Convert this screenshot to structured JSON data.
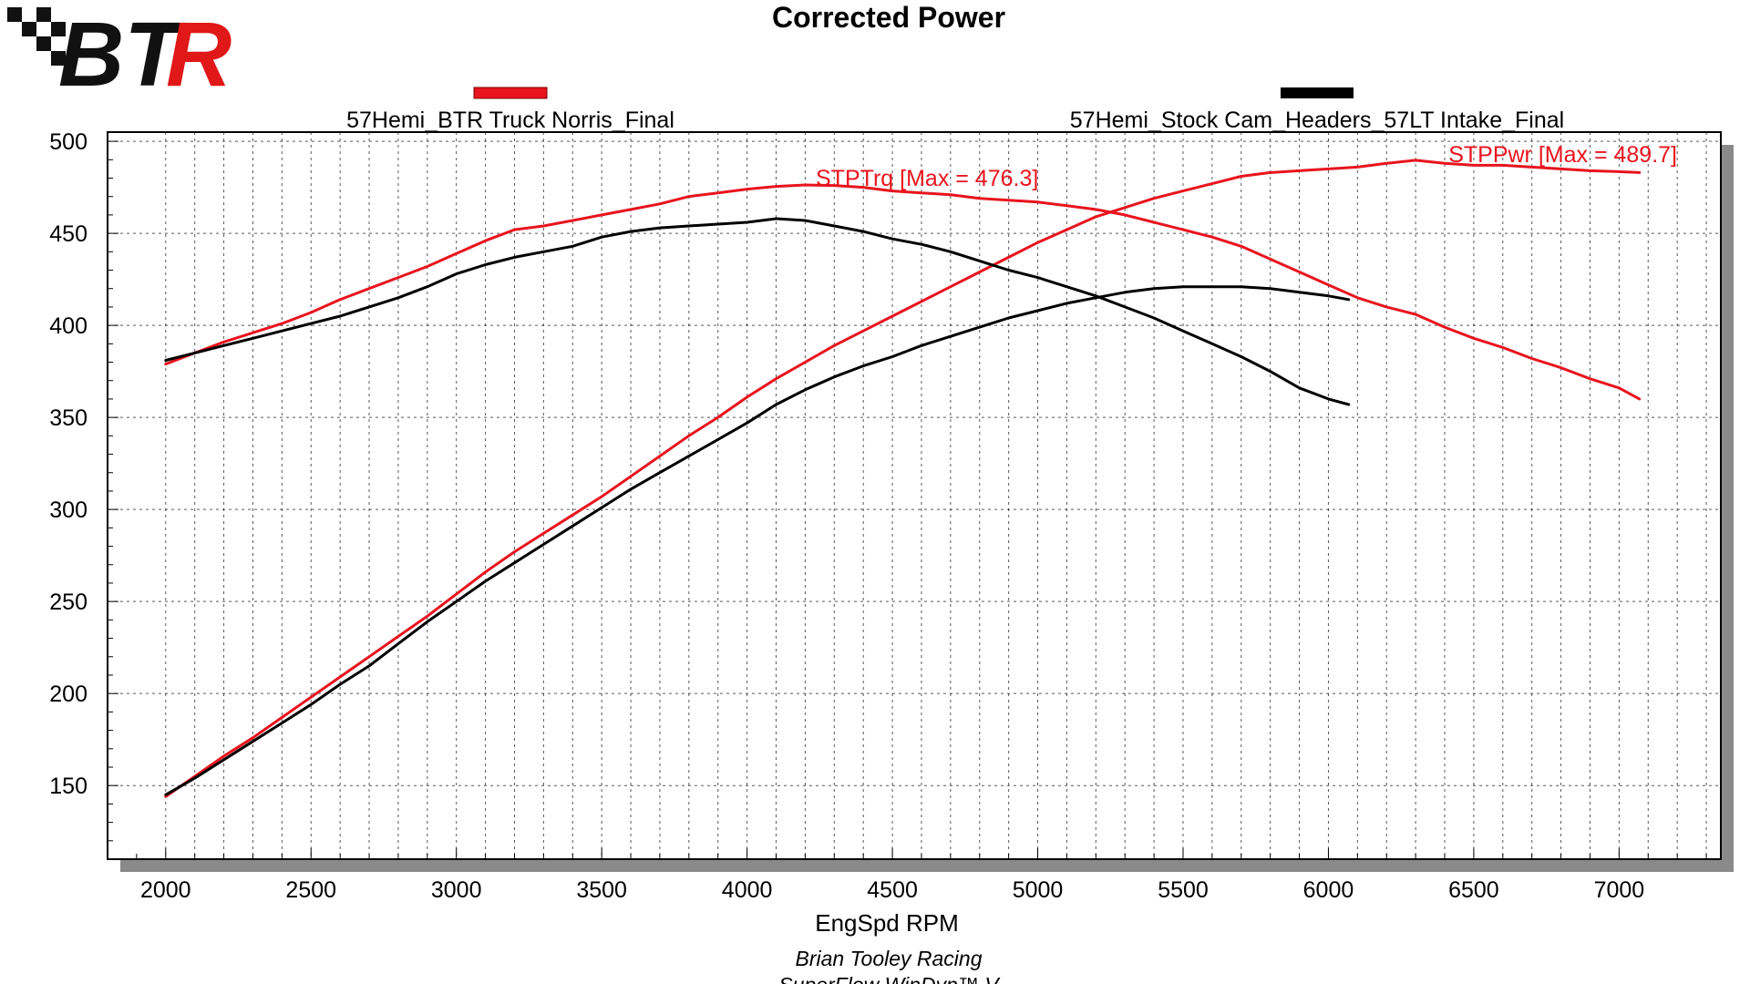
{
  "logo": {
    "text": "BTR",
    "colors": {
      "black": "#111111",
      "red": "#e01818"
    }
  },
  "footer": {
    "line1": "Brian Tooley Racing",
    "line2": "SuperFlow WinDyn™ V"
  },
  "chart_data": {
    "type": "line",
    "title": "Corrected Power",
    "xlabel": "EngSpd RPM",
    "ylabel": "",
    "xlim": [
      1800,
      7350
    ],
    "ylim": [
      110,
      505
    ],
    "x_ticks": [
      2000,
      2500,
      3000,
      3500,
      4000,
      4500,
      5000,
      5500,
      6000,
      6500,
      7000
    ],
    "y_ticks": [
      150,
      200,
      250,
      300,
      350,
      400,
      450,
      500
    ],
    "grid": true,
    "legend": [
      {
        "name": "57Hemi_BTR Truck Norris_Final",
        "color": "#e8141e"
      },
      {
        "name": "57Hemi_Stock Cam_Headers_57LT Intake_Final",
        "color": "#000000"
      }
    ],
    "annotations": [
      {
        "text": "STPTrq [Max = 476.3]",
        "x": 4200,
        "y": 476.3,
        "color": "#e8141e"
      },
      {
        "text": "STPPwr [Max = 489.7]",
        "x": 6300,
        "y": 489.7,
        "color": "#e8141e"
      }
    ],
    "series": [
      {
        "run": "57Hemi_BTR Truck Norris_Final",
        "measure": "STPTrq",
        "color": "#e8141e",
        "x": [
          2000,
          2100,
          2200,
          2300,
          2400,
          2500,
          2600,
          2700,
          2800,
          2900,
          3000,
          3100,
          3200,
          3300,
          3400,
          3500,
          3600,
          3700,
          3800,
          3900,
          4000,
          4100,
          4200,
          4300,
          4400,
          4500,
          4600,
          4700,
          4800,
          4900,
          5000,
          5100,
          5200,
          5300,
          5400,
          5500,
          5600,
          5700,
          5800,
          5900,
          6000,
          6100,
          6200,
          6300,
          6400,
          6500,
          6600,
          6700,
          6800,
          6900,
          7000,
          7070
        ],
        "values": [
          379,
          385,
          391,
          396,
          401,
          407,
          414,
          420,
          426,
          432,
          439,
          446,
          452,
          454,
          457,
          460,
          463,
          466,
          470,
          472,
          474,
          475.5,
          476.3,
          476,
          475,
          473,
          472,
          471,
          469,
          468,
          467,
          465,
          463,
          460,
          456,
          452,
          448,
          443,
          436,
          429,
          422,
          415,
          410,
          406,
          399,
          393,
          388,
          382,
          377,
          371,
          366,
          360
        ]
      },
      {
        "run": "57Hemi_BTR Truck Norris_Final",
        "measure": "STPPwr",
        "color": "#e8141e",
        "x": [
          2000,
          2100,
          2200,
          2300,
          2400,
          2500,
          2600,
          2700,
          2800,
          2900,
          3000,
          3100,
          3200,
          3300,
          3400,
          3500,
          3600,
          3700,
          3800,
          3900,
          4000,
          4100,
          4200,
          4300,
          4400,
          4500,
          4600,
          4700,
          4800,
          4900,
          5000,
          5100,
          5200,
          5300,
          5400,
          5500,
          5600,
          5700,
          5800,
          5900,
          6000,
          6100,
          6200,
          6300,
          6400,
          6500,
          6600,
          6700,
          6800,
          6900,
          7000,
          7070
        ],
        "values": [
          144,
          155,
          166,
          176,
          187,
          198,
          209,
          220,
          231,
          242,
          254,
          266,
          277,
          287,
          297,
          307,
          318,
          329,
          340,
          350,
          361,
          371,
          380,
          389,
          397,
          405,
          413,
          421,
          429,
          437,
          445,
          452,
          459,
          464,
          469,
          473,
          477,
          481,
          483,
          484,
          485,
          486,
          488,
          489.7,
          488,
          487,
          487,
          486,
          485,
          484,
          483.5,
          483
        ]
      },
      {
        "run": "57Hemi_Stock Cam_Headers_57LT Intake_Final",
        "measure": "STPTrq",
        "color": "#000000",
        "x": [
          2000,
          2100,
          2200,
          2300,
          2400,
          2500,
          2600,
          2700,
          2800,
          2900,
          3000,
          3100,
          3200,
          3300,
          3400,
          3500,
          3600,
          3700,
          3800,
          3900,
          4000,
          4100,
          4200,
          4300,
          4400,
          4500,
          4600,
          4700,
          4800,
          4900,
          5000,
          5100,
          5200,
          5300,
          5400,
          5500,
          5600,
          5700,
          5800,
          5900,
          6000,
          6070
        ],
        "values": [
          381,
          385,
          389,
          393,
          397,
          401,
          405,
          410,
          415,
          421,
          428,
          433,
          437,
          440,
          443,
          448,
          451,
          453,
          454,
          455,
          456,
          458,
          457,
          454,
          451,
          447,
          444,
          440,
          435,
          430,
          426,
          421,
          416,
          410,
          404,
          397,
          390,
          383,
          375,
          366,
          360,
          357
        ]
      },
      {
        "run": "57Hemi_Stock Cam_Headers_57LT Intake_Final",
        "measure": "STPPwr",
        "color": "#000000",
        "x": [
          2000,
          2100,
          2200,
          2300,
          2400,
          2500,
          2600,
          2700,
          2800,
          2900,
          3000,
          3100,
          3200,
          3300,
          3400,
          3500,
          3600,
          3700,
          3800,
          3900,
          4000,
          4100,
          4200,
          4300,
          4400,
          4500,
          4600,
          4700,
          4800,
          4900,
          5000,
          5100,
          5200,
          5300,
          5400,
          5500,
          5600,
          5700,
          5800,
          5900,
          6000,
          6070
        ],
        "values": [
          145,
          154,
          164,
          174,
          184,
          194,
          205,
          215,
          227,
          239,
          250,
          261,
          271,
          281,
          291,
          301,
          311,
          320,
          329,
          338,
          347,
          357,
          365,
          372,
          378,
          383,
          389,
          394,
          399,
          404,
          408,
          412,
          415,
          418,
          420,
          421,
          421,
          421,
          420,
          418,
          416,
          414
        ]
      }
    ]
  }
}
